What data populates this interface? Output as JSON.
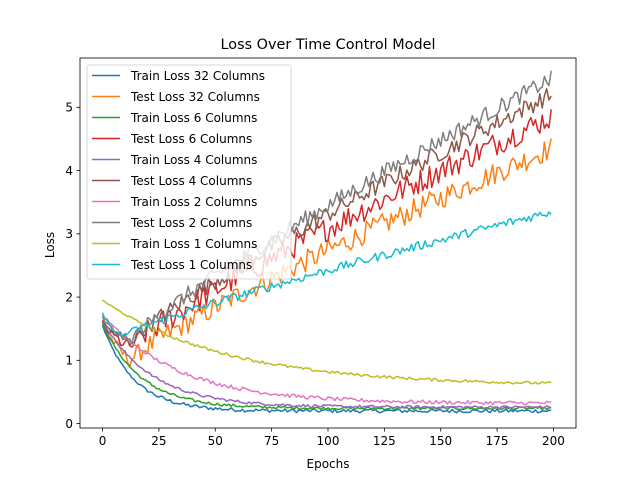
{
  "chart_data": {
    "type": "line",
    "title": "Loss Over Time Control Model",
    "xlabel": "Epochs",
    "ylabel": "Loss",
    "xlim": [
      -10,
      210
    ],
    "ylim": [
      -0.07,
      5.78
    ],
    "xticks": [
      0,
      25,
      50,
      75,
      100,
      125,
      150,
      175,
      200
    ],
    "yticks": [
      0,
      1,
      2,
      3,
      4,
      5
    ],
    "grid": false,
    "legend_position": "upper-left",
    "x": {
      "start": 0,
      "end": 199,
      "step": 1
    },
    "series": [
      {
        "name": "Train Loss 32 Columns",
        "color": "#1f77b4",
        "kind": "decay",
        "start": 1.55,
        "end": 0.2,
        "tau": 14,
        "noise": 0.02
      },
      {
        "name": "Test Loss 32 Columns",
        "color": "#ff7f0e",
        "kind": "u",
        "start": 1.62,
        "min": 1.0,
        "min_x": 12,
        "end": 4.35,
        "noise": 0.18
      },
      {
        "name": "Train Loss 6 Columns",
        "color": "#2ca02c",
        "kind": "decay",
        "start": 1.58,
        "end": 0.24,
        "tau": 17,
        "noise": 0.015
      },
      {
        "name": "Test Loss 6 Columns",
        "color": "#d62728",
        "kind": "u",
        "start": 1.6,
        "min": 1.2,
        "min_x": 12,
        "end": 4.85,
        "noise": 0.2
      },
      {
        "name": "Train Loss 4 Columns",
        "color": "#9467bd",
        "kind": "decay",
        "start": 1.62,
        "end": 0.26,
        "tau": 22,
        "noise": 0.015
      },
      {
        "name": "Test Loss 4 Columns",
        "color": "#8c564b",
        "kind": "u",
        "start": 1.62,
        "min": 1.28,
        "min_x": 12,
        "end": 5.2,
        "noise": 0.14
      },
      {
        "name": "Train Loss 2 Columns",
        "color": "#e377c2",
        "kind": "decay",
        "start": 1.72,
        "end": 0.32,
        "tau": 34,
        "noise": 0.02
      },
      {
        "name": "Test Loss 2 Columns",
        "color": "#7f7f7f",
        "kind": "u",
        "start": 1.68,
        "min": 1.3,
        "min_x": 12,
        "end": 5.45,
        "noise": 0.13
      },
      {
        "name": "Train Loss 1 Columns",
        "color": "#bcbd22",
        "kind": "decay",
        "start": 1.95,
        "end": 0.6,
        "tau": 55,
        "noise": 0.015
      },
      {
        "name": "Test Loss 1 Columns",
        "color": "#17becf",
        "kind": "u",
        "start": 1.75,
        "min": 1.38,
        "min_x": 8,
        "end": 3.35,
        "noise": 0.07
      }
    ]
  }
}
